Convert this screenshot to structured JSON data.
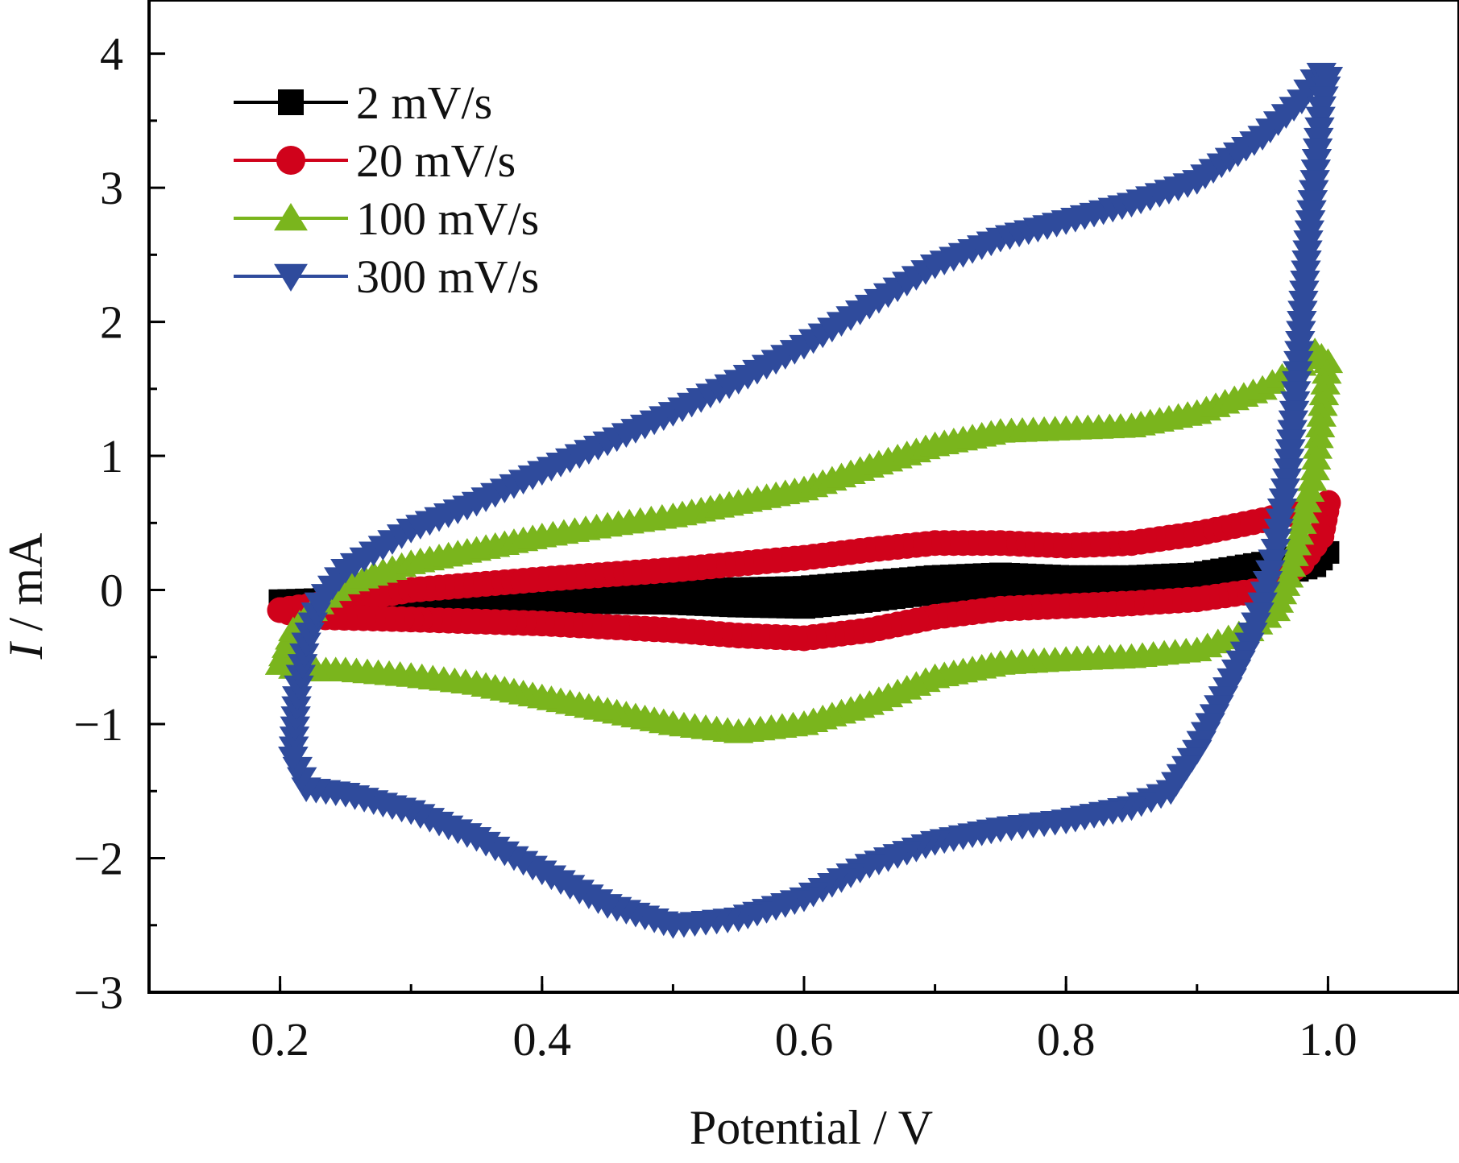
{
  "chart_data": {
    "type": "line",
    "title": "",
    "xlabel": "Potential / V",
    "ylabel_italic": "I",
    "ylabel_rest": " / mA",
    "xlim": [
      0.1,
      1.1
    ],
    "ylim": [
      -3,
      4.4
    ],
    "xticks": [
      0.2,
      0.4,
      0.6,
      0.8,
      1.0
    ],
    "xtick_labels": [
      "0.2",
      "0.4",
      "0.6",
      "0.8",
      "1.0"
    ],
    "yticks": [
      -3,
      -2,
      -1,
      0,
      1,
      2,
      3,
      4
    ],
    "ytick_labels": [
      "−3",
      "−2",
      "−1",
      "0",
      "1",
      "2",
      "3",
      "4"
    ],
    "grid": false,
    "legend_position": "top-left",
    "series": [
      {
        "name": "2 mV/s",
        "color": "#000000",
        "marker": "square",
        "upper": [
          [
            0.2,
            -0.08
          ],
          [
            0.3,
            -0.05
          ],
          [
            0.4,
            -0.02
          ],
          [
            0.5,
            0.0
          ],
          [
            0.6,
            0.02
          ],
          [
            0.65,
            0.06
          ],
          [
            0.7,
            0.1
          ],
          [
            0.75,
            0.12
          ],
          [
            0.8,
            0.1
          ],
          [
            0.85,
            0.1
          ],
          [
            0.9,
            0.12
          ],
          [
            0.95,
            0.2
          ],
          [
            0.985,
            0.26
          ],
          [
            1.0,
            0.28
          ]
        ],
        "lower": [
          [
            1.0,
            0.28
          ],
          [
            0.99,
            0.18
          ],
          [
            0.95,
            0.08
          ],
          [
            0.9,
            0.07
          ],
          [
            0.85,
            0.06
          ],
          [
            0.8,
            0.05
          ],
          [
            0.75,
            0.03
          ],
          [
            0.7,
            -0.02
          ],
          [
            0.65,
            -0.08
          ],
          [
            0.6,
            -0.13
          ],
          [
            0.55,
            -0.12
          ],
          [
            0.5,
            -0.1
          ],
          [
            0.4,
            -0.09
          ],
          [
            0.3,
            -0.08
          ],
          [
            0.2,
            -0.08
          ]
        ]
      },
      {
        "name": "20 mV/s",
        "color": "#d0021b",
        "marker": "circle",
        "upper": [
          [
            0.2,
            -0.15
          ],
          [
            0.25,
            -0.08
          ],
          [
            0.3,
            0.0
          ],
          [
            0.4,
            0.08
          ],
          [
            0.5,
            0.15
          ],
          [
            0.6,
            0.24
          ],
          [
            0.65,
            0.3
          ],
          [
            0.7,
            0.35
          ],
          [
            0.75,
            0.35
          ],
          [
            0.8,
            0.33
          ],
          [
            0.85,
            0.35
          ],
          [
            0.9,
            0.42
          ],
          [
            0.95,
            0.52
          ],
          [
            0.985,
            0.6
          ],
          [
            1.0,
            0.65
          ]
        ],
        "lower": [
          [
            1.0,
            0.65
          ],
          [
            0.995,
            0.4
          ],
          [
            0.98,
            0.2
          ],
          [
            0.95,
            0.0
          ],
          [
            0.9,
            -0.07
          ],
          [
            0.85,
            -0.1
          ],
          [
            0.8,
            -0.12
          ],
          [
            0.75,
            -0.14
          ],
          [
            0.7,
            -0.2
          ],
          [
            0.65,
            -0.3
          ],
          [
            0.6,
            -0.36
          ],
          [
            0.55,
            -0.34
          ],
          [
            0.5,
            -0.3
          ],
          [
            0.4,
            -0.25
          ],
          [
            0.3,
            -0.22
          ],
          [
            0.22,
            -0.2
          ],
          [
            0.2,
            -0.15
          ]
        ]
      },
      {
        "name": "100 mV/s",
        "color": "#7ab51d",
        "marker": "triangle-up",
        "upper": [
          [
            0.2,
            -0.55
          ],
          [
            0.21,
            -0.3
          ],
          [
            0.23,
            -0.1
          ],
          [
            0.25,
            0.05
          ],
          [
            0.3,
            0.2
          ],
          [
            0.35,
            0.3
          ],
          [
            0.4,
            0.4
          ],
          [
            0.45,
            0.48
          ],
          [
            0.5,
            0.55
          ],
          [
            0.55,
            0.65
          ],
          [
            0.6,
            0.75
          ],
          [
            0.65,
            0.92
          ],
          [
            0.7,
            1.08
          ],
          [
            0.75,
            1.18
          ],
          [
            0.8,
            1.2
          ],
          [
            0.85,
            1.22
          ],
          [
            0.9,
            1.32
          ],
          [
            0.95,
            1.5
          ],
          [
            0.98,
            1.68
          ],
          [
            0.99,
            1.78
          ],
          [
            1.0,
            1.7
          ]
        ],
        "lower": [
          [
            1.0,
            1.7
          ],
          [
            0.995,
            1.3
          ],
          [
            0.99,
            0.9
          ],
          [
            0.98,
            0.5
          ],
          [
            0.97,
            0.1
          ],
          [
            0.96,
            -0.15
          ],
          [
            0.94,
            -0.3
          ],
          [
            0.9,
            -0.45
          ],
          [
            0.85,
            -0.5
          ],
          [
            0.8,
            -0.52
          ],
          [
            0.75,
            -0.55
          ],
          [
            0.7,
            -0.65
          ],
          [
            0.65,
            -0.85
          ],
          [
            0.6,
            -1.0
          ],
          [
            0.55,
            -1.06
          ],
          [
            0.5,
            -1.0
          ],
          [
            0.45,
            -0.9
          ],
          [
            0.4,
            -0.8
          ],
          [
            0.35,
            -0.7
          ],
          [
            0.3,
            -0.64
          ],
          [
            0.25,
            -0.6
          ],
          [
            0.22,
            -0.6
          ],
          [
            0.21,
            -0.58
          ],
          [
            0.2,
            -0.55
          ]
        ]
      },
      {
        "name": "300 mV/s",
        "color": "#2f4b9c",
        "marker": "triangle-down",
        "upper": [
          [
            0.21,
            -1.25
          ],
          [
            0.213,
            -0.8
          ],
          [
            0.22,
            -0.4
          ],
          [
            0.23,
            -0.1
          ],
          [
            0.25,
            0.15
          ],
          [
            0.3,
            0.45
          ],
          [
            0.35,
            0.65
          ],
          [
            0.4,
            0.88
          ],
          [
            0.45,
            1.1
          ],
          [
            0.5,
            1.32
          ],
          [
            0.55,
            1.56
          ],
          [
            0.6,
            1.82
          ],
          [
            0.65,
            2.12
          ],
          [
            0.7,
            2.42
          ],
          [
            0.75,
            2.62
          ],
          [
            0.8,
            2.75
          ],
          [
            0.85,
            2.88
          ],
          [
            0.9,
            3.05
          ],
          [
            0.95,
            3.38
          ],
          [
            0.98,
            3.65
          ],
          [
            0.99,
            3.8
          ],
          [
            0.995,
            3.85
          ],
          [
            1.0,
            3.82
          ]
        ],
        "lower": [
          [
            1.0,
            3.82
          ],
          [
            0.995,
            3.6
          ],
          [
            0.99,
            3.05
          ],
          [
            0.985,
            2.6
          ],
          [
            0.98,
            2.0
          ],
          [
            0.975,
            1.4
          ],
          [
            0.97,
            0.9
          ],
          [
            0.96,
            0.3
          ],
          [
            0.95,
            -0.1
          ],
          [
            0.94,
            -0.4
          ],
          [
            0.92,
            -0.8
          ],
          [
            0.9,
            -1.2
          ],
          [
            0.88,
            -1.5
          ],
          [
            0.85,
            -1.62
          ],
          [
            0.8,
            -1.72
          ],
          [
            0.75,
            -1.78
          ],
          [
            0.7,
            -1.88
          ],
          [
            0.65,
            -2.05
          ],
          [
            0.6,
            -2.3
          ],
          [
            0.55,
            -2.45
          ],
          [
            0.5,
            -2.5
          ],
          [
            0.45,
            -2.35
          ],
          [
            0.4,
            -2.1
          ],
          [
            0.35,
            -1.85
          ],
          [
            0.3,
            -1.65
          ],
          [
            0.25,
            -1.52
          ],
          [
            0.22,
            -1.48
          ],
          [
            0.21,
            -1.25
          ]
        ]
      }
    ]
  }
}
